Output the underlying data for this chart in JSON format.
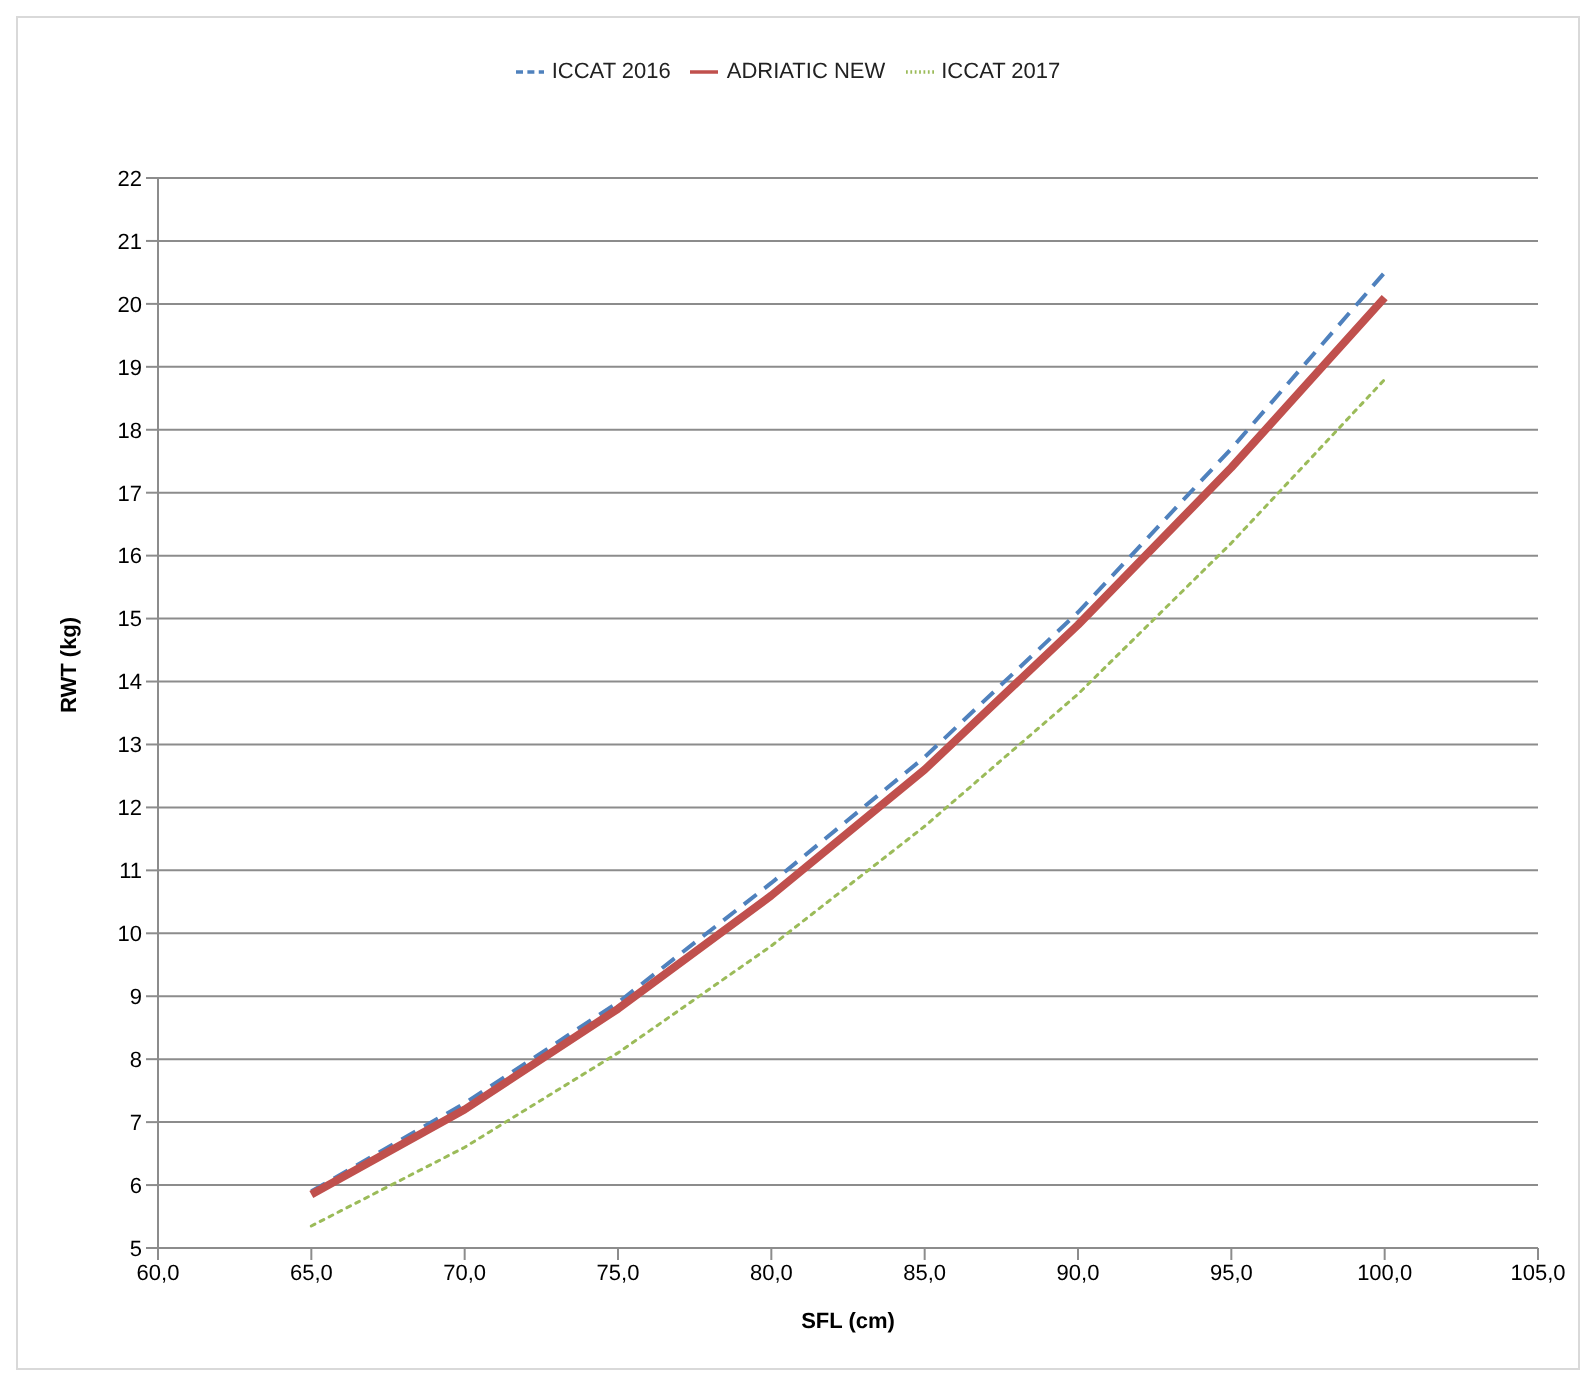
{
  "chart_data": {
    "type": "line",
    "xlabel": "SFL (cm)",
    "ylabel": "RWT (kg)",
    "x": [
      65,
      70,
      75,
      80,
      85,
      90,
      95,
      100
    ],
    "series": [
      {
        "name": "ICCAT 2016",
        "color": "#4f81bd",
        "line_style": "dashed",
        "values": [
          5.9,
          7.3,
          8.9,
          10.8,
          12.8,
          15.1,
          17.7,
          20.5
        ]
      },
      {
        "name": "ADRIATIC NEW",
        "color": "#c0504d",
        "line_style": "solid",
        "values": [
          5.85,
          7.2,
          8.8,
          10.6,
          12.6,
          14.9,
          17.4,
          20.1
        ]
      },
      {
        "name": "ICCAT 2017",
        "color": "#9bbb59",
        "line_style": "dotted",
        "values": [
          5.35,
          6.6,
          8.1,
          9.8,
          11.7,
          13.8,
          16.2,
          18.8
        ]
      }
    ],
    "xlim": [
      60,
      105
    ],
    "xticks": [
      {
        "value": 60,
        "label": "60,0"
      },
      {
        "value": 65,
        "label": "65,0"
      },
      {
        "value": 70,
        "label": "70,0"
      },
      {
        "value": 75,
        "label": "75,0"
      },
      {
        "value": 80,
        "label": "80,0"
      },
      {
        "value": 85,
        "label": "85,0"
      },
      {
        "value": 90,
        "label": "90,0"
      },
      {
        "value": 95,
        "label": "95,0"
      },
      {
        "value": 100,
        "label": "100,0"
      },
      {
        "value": 105,
        "label": "105,0"
      }
    ],
    "ylim": [
      5,
      22
    ],
    "yticks": [
      5,
      6,
      7,
      8,
      9,
      10,
      11,
      12,
      13,
      14,
      15,
      16,
      17,
      18,
      19,
      20,
      21,
      22
    ],
    "grid": "y",
    "legend": "top",
    "marker": "none"
  }
}
